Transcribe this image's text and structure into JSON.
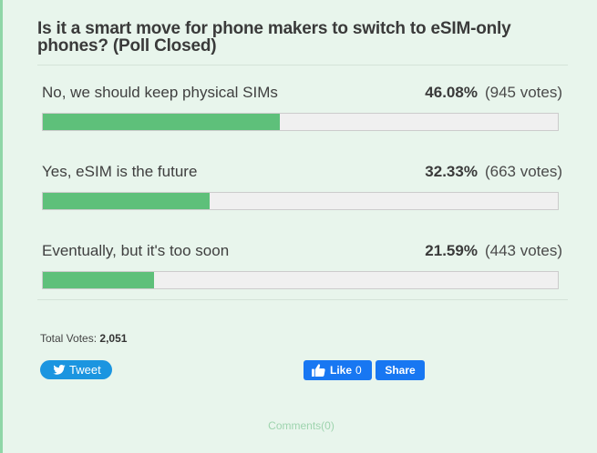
{
  "poll": {
    "title": "Is it a smart move for phone makers to switch to eSIM-only phones? (Poll Closed)",
    "status": "Poll Closed",
    "answers": [
      {
        "label": "No, we should keep physical SIMs",
        "percent": "46.08%",
        "votes": "(945 votes)",
        "fill_pct": 46.08
      },
      {
        "label": "Yes, eSIM is the future",
        "percent": "32.33%",
        "votes": "(663 votes)",
        "fill_pct": 32.33
      },
      {
        "label": "Eventually, but it's too soon",
        "percent": "21.59%",
        "votes": "(443 votes)",
        "fill_pct": 21.59
      }
    ],
    "total_label": "Total Votes:",
    "total_value": "2,051"
  },
  "social": {
    "tweet_label": "Tweet",
    "like_label": "Like",
    "like_count": "0",
    "share_label": "Share"
  },
  "comments": {
    "label": "Comments(0)"
  },
  "colors": {
    "background": "#e8f5ec",
    "bar_fill": "#5ec07a",
    "bar_track": "#f0f0f0",
    "left_accent": "#8fd6a7",
    "twitter_blue": "#1b95e0",
    "facebook_blue": "#1877f2",
    "comments_link": "#9ed4ae"
  }
}
